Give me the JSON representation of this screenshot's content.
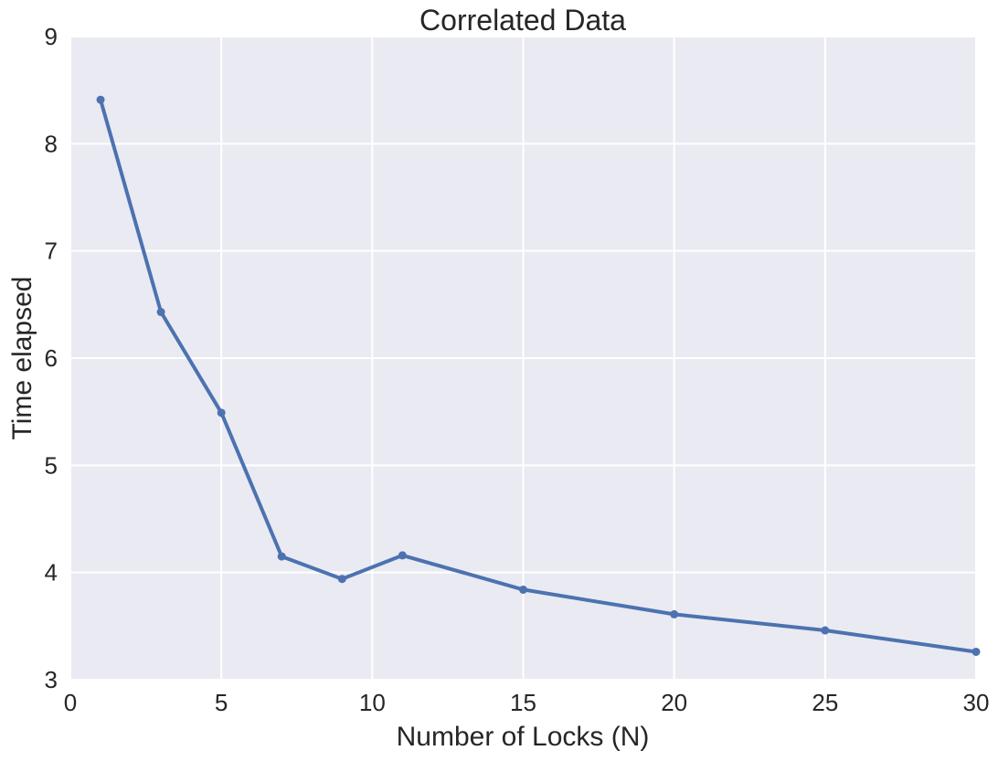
{
  "chart_data": {
    "type": "line",
    "title": "Correlated Data",
    "xlabel": "Number of Locks (N)",
    "ylabel": "Time elapsed",
    "xlim": [
      0,
      30
    ],
    "ylim": [
      3,
      9
    ],
    "x_ticks": [
      0,
      5,
      10,
      15,
      20,
      25,
      30
    ],
    "y_ticks": [
      3,
      4,
      5,
      6,
      7,
      8,
      9
    ],
    "grid": true,
    "colors": {
      "background": "#EAEAF2",
      "grid": "#FFFFFF",
      "series": "#4C72B0",
      "text": "#262626"
    },
    "series": [
      {
        "x": [
          1,
          3,
          5,
          7,
          9,
          11,
          15,
          20,
          25,
          30
        ],
        "y": [
          8.41,
          6.43,
          5.49,
          4.15,
          3.94,
          4.16,
          3.84,
          3.61,
          3.46,
          3.26
        ]
      }
    ]
  }
}
